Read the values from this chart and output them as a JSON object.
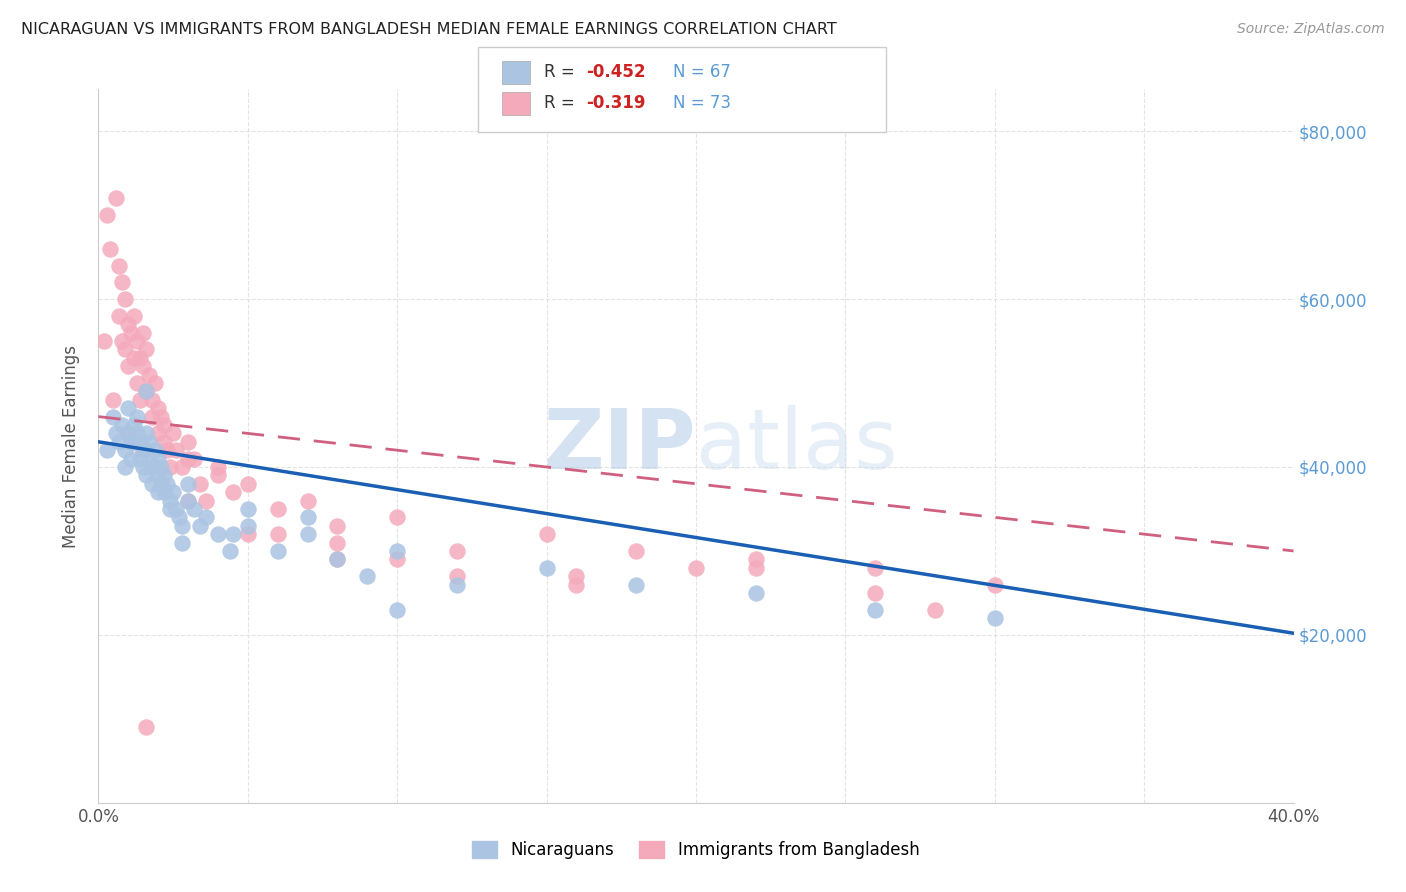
{
  "title": "NICARAGUAN VS IMMIGRANTS FROM BANGLADESH MEDIAN FEMALE EARNINGS CORRELATION CHART",
  "source_text": "Source: ZipAtlas.com",
  "ylabel": "Median Female Earnings",
  "xlim": [
    0.0,
    0.4
  ],
  "ylim": [
    0,
    85000
  ],
  "nicaraguan_color": "#aac4e2",
  "bangladesh_color": "#f4aabb",
  "nicaraguan_line_color": "#1a5fb4",
  "bangladesh_line_color": "#d06080",
  "legend_label_nicaraguan": "Nicaraguans",
  "legend_label_bangladesh": "Immigrants from Bangladesh",
  "watermark_zip": "ZIP",
  "watermark_atlas": "atlas",
  "background_color": "#ffffff",
  "grid_color": "#e0e0e0",
  "nic_intercept": 43000,
  "nic_slope": -57000,
  "ban_intercept": 46000,
  "ban_slope": -40000,
  "nicaraguan_x": [
    0.003,
    0.005,
    0.006,
    0.007,
    0.008,
    0.009,
    0.009,
    0.01,
    0.01,
    0.011,
    0.011,
    0.012,
    0.012,
    0.013,
    0.013,
    0.014,
    0.014,
    0.015,
    0.015,
    0.016,
    0.016,
    0.016,
    0.017,
    0.017,
    0.018,
    0.018,
    0.019,
    0.019,
    0.02,
    0.02,
    0.021,
    0.021,
    0.022,
    0.022,
    0.023,
    0.024,
    0.025,
    0.026,
    0.027,
    0.028,
    0.03,
    0.032,
    0.034,
    0.036,
    0.04,
    0.044,
    0.05,
    0.06,
    0.07,
    0.08,
    0.09,
    0.1,
    0.12,
    0.15,
    0.18,
    0.22,
    0.26,
    0.3,
    0.03,
    0.045,
    0.016,
    0.02,
    0.024,
    0.028,
    0.05,
    0.07,
    0.1
  ],
  "nicaraguan_y": [
    42000,
    46000,
    44000,
    43000,
    45000,
    42000,
    40000,
    44000,
    47000,
    43000,
    41000,
    45000,
    43000,
    44000,
    46000,
    41000,
    43000,
    42000,
    40000,
    44000,
    42000,
    39000,
    43000,
    41000,
    40000,
    38000,
    42000,
    40000,
    41000,
    39000,
    38000,
    40000,
    37000,
    39000,
    38000,
    36000,
    37000,
    35000,
    34000,
    33000,
    36000,
    35000,
    33000,
    34000,
    32000,
    30000,
    33000,
    30000,
    32000,
    29000,
    27000,
    30000,
    26000,
    28000,
    26000,
    25000,
    23000,
    22000,
    38000,
    32000,
    49000,
    37000,
    35000,
    31000,
    35000,
    34000,
    23000
  ],
  "bangladesh_x": [
    0.002,
    0.003,
    0.004,
    0.005,
    0.006,
    0.007,
    0.007,
    0.008,
    0.008,
    0.009,
    0.009,
    0.01,
    0.01,
    0.011,
    0.012,
    0.012,
    0.013,
    0.013,
    0.014,
    0.014,
    0.015,
    0.015,
    0.016,
    0.016,
    0.017,
    0.018,
    0.018,
    0.019,
    0.02,
    0.02,
    0.021,
    0.022,
    0.023,
    0.024,
    0.025,
    0.026,
    0.028,
    0.03,
    0.032,
    0.034,
    0.036,
    0.04,
    0.045,
    0.05,
    0.06,
    0.07,
    0.08,
    0.1,
    0.12,
    0.15,
    0.18,
    0.22,
    0.26,
    0.3,
    0.015,
    0.022,
    0.03,
    0.04,
    0.06,
    0.08,
    0.12,
    0.16,
    0.22,
    0.03,
    0.05,
    0.08,
    0.1,
    0.16,
    0.2,
    0.26,
    0.28,
    0.01,
    0.016
  ],
  "bangladesh_y": [
    55000,
    70000,
    66000,
    48000,
    72000,
    64000,
    58000,
    55000,
    62000,
    54000,
    60000,
    57000,
    52000,
    56000,
    58000,
    53000,
    55000,
    50000,
    53000,
    48000,
    52000,
    56000,
    49000,
    54000,
    51000,
    48000,
    46000,
    50000,
    47000,
    44000,
    46000,
    43000,
    42000,
    40000,
    44000,
    42000,
    40000,
    43000,
    41000,
    38000,
    36000,
    40000,
    37000,
    38000,
    35000,
    36000,
    33000,
    34000,
    30000,
    32000,
    30000,
    29000,
    28000,
    26000,
    42000,
    45000,
    41000,
    39000,
    32000,
    29000,
    27000,
    26000,
    28000,
    36000,
    32000,
    31000,
    29000,
    27000,
    28000,
    25000,
    23000,
    44000,
    9000
  ]
}
